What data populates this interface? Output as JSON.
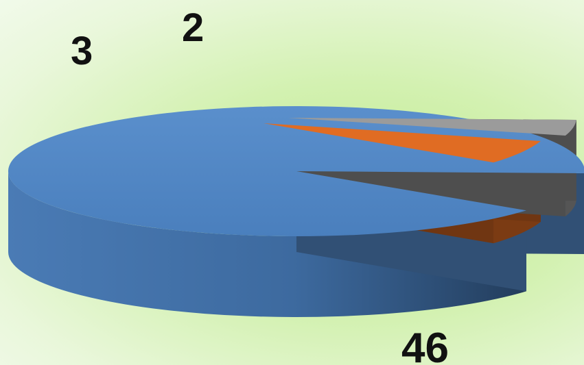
{
  "chart_data": {
    "type": "pie",
    "style": "3d-exploded",
    "title": "",
    "values": [
      46,
      3,
      2
    ],
    "data_labels": [
      "46",
      "3",
      "2"
    ],
    "colors": [
      "#4f81bd",
      "#e06c23",
      "#9b9b9b"
    ],
    "legend": "none"
  }
}
